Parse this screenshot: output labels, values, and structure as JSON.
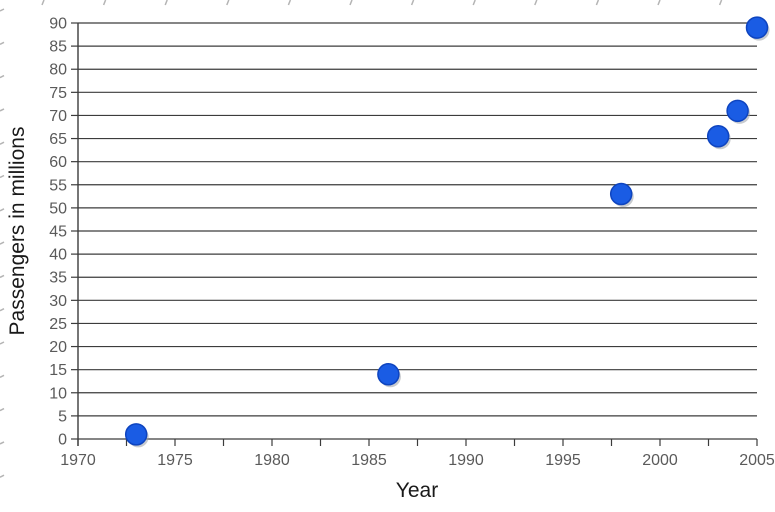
{
  "chart_data": {
    "type": "scatter",
    "title": "",
    "xlabel": "Year",
    "ylabel": "Passengers in millions",
    "points": [
      {
        "x": 1973,
        "y": 1
      },
      {
        "x": 1986,
        "y": 14
      },
      {
        "x": 1998,
        "y": 53
      },
      {
        "x": 2003,
        "y": 65.5
      },
      {
        "x": 2004,
        "y": 71
      },
      {
        "x": 2005,
        "y": 89
      }
    ],
    "xlim": [
      1970,
      2005
    ],
    "ylim": [
      0,
      90
    ],
    "x_major_tick_step": 5,
    "x_minor_tick_step": 2.5,
    "y_tick_step": 5,
    "x_tick_labels": [
      "1970",
      "1975",
      "1980",
      "1985",
      "1990",
      "1995",
      "2000",
      "2005"
    ],
    "y_tick_labels": [
      "0",
      "5",
      "10",
      "15",
      "20",
      "25",
      "30",
      "35",
      "40",
      "45",
      "50",
      "55",
      "60",
      "65",
      "70",
      "75",
      "80",
      "85",
      "90"
    ],
    "grid": "horizontal",
    "legend": "none",
    "colors": {
      "marker_fill": "#1a5ce4",
      "marker_edge": "#0e44bf",
      "marker_shadow": "#9aa0a8",
      "grid_line": "#3c3c3c",
      "axis_line": "#3c3c3c",
      "tick_label": "#5a5a5a",
      "axis_title": "#1a1a1a",
      "edge_mark": "#b4b4b4",
      "background": "#ffffff"
    }
  }
}
